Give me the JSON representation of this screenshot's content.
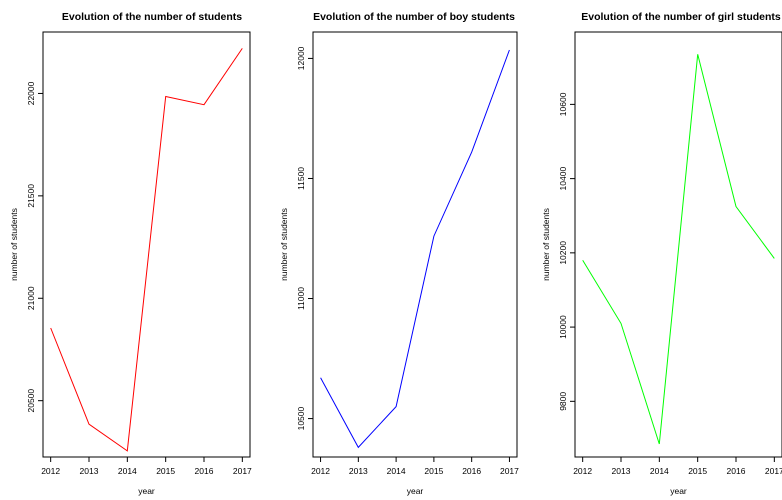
{
  "chart_data": [
    {
      "type": "line",
      "title": "Evolution of the number of students",
      "xlabel": "year",
      "ylabel": "number of students",
      "x": [
        2012,
        2013,
        2014,
        2015,
        2016,
        2017
      ],
      "series": [
        {
          "values": [
            20855,
            20385,
            20255,
            21985,
            21945,
            22220
          ],
          "color": "#ff0000"
        }
      ],
      "x_ticks": [
        "2012",
        "2013",
        "2014",
        "2015",
        "2016",
        "2017"
      ],
      "y_ticks": [
        "20500",
        "21000",
        "21500",
        "22000"
      ],
      "ylim": [
        20225,
        22300
      ],
      "grid": false
    },
    {
      "type": "line",
      "title": "Evolution of the number of boy students",
      "xlabel": "year",
      "ylabel": "number of students",
      "x": [
        2012,
        2013,
        2014,
        2015,
        2016,
        2017
      ],
      "series": [
        {
          "values": [
            10670,
            10380,
            10550,
            11260,
            11610,
            12035
          ],
          "color": "#0000ff"
        }
      ],
      "x_ticks": [
        "2012",
        "2013",
        "2014",
        "2015",
        "2016",
        "2017"
      ],
      "y_ticks": [
        "10500",
        "11000",
        "11500",
        "12000"
      ],
      "ylim": [
        10340,
        12110
      ],
      "grid": false
    },
    {
      "type": "line",
      "title": "Evolution of the number of girl students",
      "xlabel": "year",
      "ylabel": "number of students",
      "x": [
        2012,
        2013,
        2014,
        2015,
        2016,
        2017
      ],
      "series": [
        {
          "values": [
            10180,
            10010,
            9685,
            10735,
            10325,
            10185
          ],
          "color": "#00ff00"
        }
      ],
      "x_ticks": [
        "2012",
        "2013",
        "2014",
        "2015",
        "2016",
        "2017"
      ],
      "y_ticks": [
        "9800",
        "10000",
        "10200",
        "10400",
        "10600"
      ],
      "ylim": [
        9650,
        10795
      ],
      "grid": false
    }
  ]
}
